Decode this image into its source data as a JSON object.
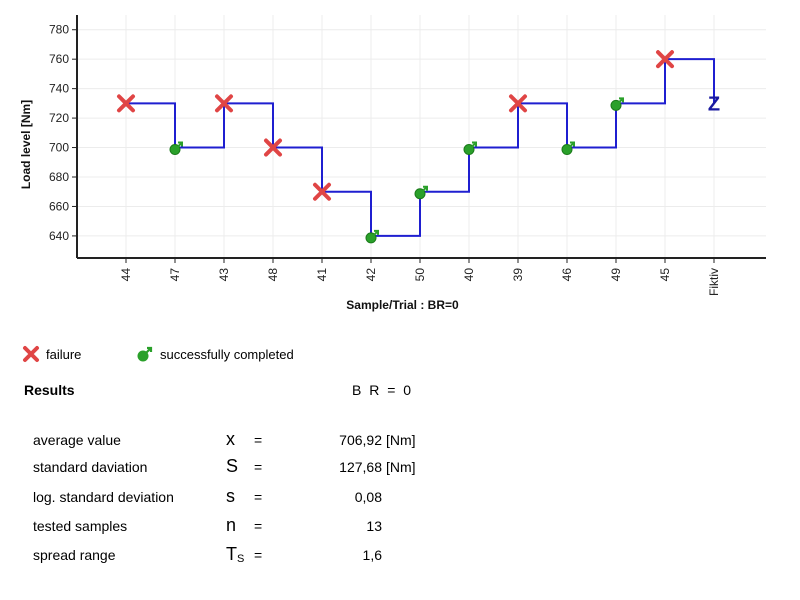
{
  "chart_data": {
    "type": "line",
    "ylabel": "Load level [Nm]",
    "xlabel": "Sample/Trial : BR=0",
    "ylim": [
      625,
      790
    ],
    "yticks": [
      640,
      660,
      680,
      700,
      720,
      740,
      760,
      780
    ],
    "categories": [
      "44",
      "47",
      "43",
      "48",
      "41",
      "42",
      "50",
      "40",
      "39",
      "46",
      "49",
      "45",
      "Fiktiv"
    ],
    "values": [
      730,
      700,
      730,
      700,
      670,
      640,
      670,
      700,
      730,
      700,
      730,
      760,
      730
    ],
    "outcomes": [
      "failure",
      "success",
      "failure",
      "failure",
      "failure",
      "success",
      "success",
      "success",
      "failure",
      "success",
      "success",
      "failure",
      "fictive"
    ],
    "fictive_marker": "Z",
    "grid": true,
    "line_color": "#1f1fd0",
    "failure_color": "#e04545",
    "success_color": "#2aa02a"
  },
  "legend": {
    "failure": "failure",
    "success": "successfully completed"
  },
  "results": {
    "title": "Results",
    "br": "B R = 0",
    "rows": [
      {
        "label": "average value",
        "symbol": "x",
        "sub": "",
        "eq": "=",
        "value": "706,92",
        "unit": "[Nm]"
      },
      {
        "label": "standard daviation",
        "symbol": "S",
        "sub": "",
        "eq": "=",
        "value": "127,68",
        "unit": "[Nm]"
      },
      {
        "label": "log. standard deviation",
        "symbol": "s",
        "sub": "",
        "eq": "=",
        "value": "0,08",
        "unit": ""
      },
      {
        "label": "tested samples",
        "symbol": "n",
        "sub": "",
        "eq": "=",
        "value": "13",
        "unit": ""
      },
      {
        "label": "spread range",
        "symbol": "T",
        "sub": "S",
        "eq": "=",
        "value": "1,6",
        "unit": ""
      }
    ]
  }
}
